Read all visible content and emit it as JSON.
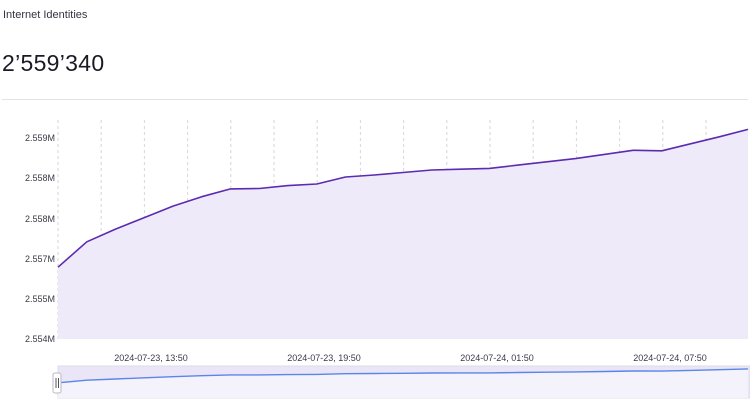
{
  "header": {
    "label": "Internet Identities",
    "value": "2’559’340"
  },
  "colors": {
    "line": "#5b2bb0",
    "area": "#efeafa",
    "navigator_line": "#5a86e8",
    "navigator_area": "#eae6f7",
    "grid": "#d6d6dc"
  },
  "chart_data": {
    "type": "area",
    "title": "",
    "xlabel": "",
    "ylabel": "",
    "y_tick_labels": [
      "2.559M",
      "2.558M",
      "2.558M",
      "2.557M",
      "2.555M",
      "2.554M"
    ],
    "x_tick_labels": [
      "2024-07-23, 13:50",
      "2024-07-23, 19:50",
      "2024-07-24, 01:50",
      "2024-07-24, 07:50"
    ],
    "ylim": [
      2554000,
      2559340
    ],
    "x_hours": [
      0,
      1,
      2,
      3,
      4,
      5,
      6,
      7,
      8,
      9,
      10,
      11,
      12,
      13,
      14,
      15,
      16,
      17,
      18,
      19,
      20,
      21,
      22,
      23,
      24
    ],
    "series": [
      {
        "values": [
          2555750,
          2556370,
          2556680,
          2556960,
          2557240,
          2557470,
          2557660,
          2557670,
          2557740,
          2557780,
          2557950,
          2558000,
          2558060,
          2558120,
          2558140,
          2558160,
          2558240,
          2558320,
          2558400,
          2558500,
          2558600,
          2558590,
          2558760,
          2558930,
          2559110
        ]
      }
    ],
    "navigator": true,
    "grid": "vertical-dashed",
    "legend": "none"
  }
}
